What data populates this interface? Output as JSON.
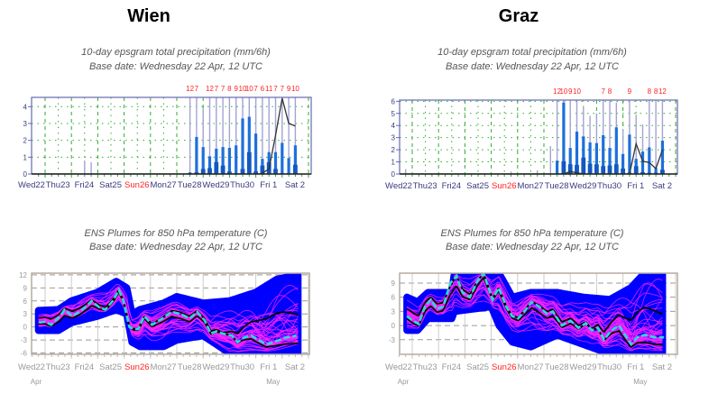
{
  "panels": {
    "wien": {
      "city": "Wien",
      "precip_title": "10-day epsgram total precipitation (mm/6h)",
      "precip_base": "Base date: Wednesday 22 Apr, 12 UTC",
      "temp_title": "ENS Plumes for 850 hPa temperature (C)",
      "temp_base": "Base date: Wednesday 22 Apr, 12 UTC"
    },
    "graz": {
      "city": "Graz",
      "precip_title": "10-day epsgram total precipitation (mm/6h)",
      "precip_base": "Base date: Wednesday 22 Apr, 12 UTC",
      "temp_title": "ENS Plumes for 850 hPa temperature (C)",
      "temp_base": "Base date: Wednesday 22 Apr, 12 UTC"
    }
  },
  "colors": {
    "box": "#1e6fdc",
    "inner": "#1258c0",
    "whisker": "#a3a3d6",
    "frame": "#6868b0",
    "grid": "#33aa33",
    "weekend": "#ff2222",
    "axis_label": "#3a3a80",
    "band": "#0000ff",
    "member": "#ff22ff",
    "mean": "#22dddd",
    "temp_label": "#999999"
  },
  "chart_data": [
    {
      "type": "bar",
      "name": "wien-precip",
      "title": "10-day epsgram total precipitation (mm/6h)",
      "categories": [
        "Wed22",
        "Thu23",
        "Fri24",
        "Sat25",
        "Sun26",
        "Mon27",
        "Tue28",
        "Wed29",
        "Thu30",
        "Fri 1",
        "Sat 2"
      ],
      "weekend": "Sun26",
      "xlabel": "",
      "ylabel": "mm/6h",
      "ylim": [
        0,
        4.55
      ],
      "yticks": [
        0,
        1,
        2,
        3,
        4
      ],
      "grid": true,
      "x_unit": "days since Wed22 00 UTC",
      "bars": [
        {
          "d": 1.5,
          "max": 0.8,
          "box": 0,
          "inner": 0,
          "label": ""
        },
        {
          "d": 1.75,
          "max": 0.7,
          "box": 0,
          "inner": 0,
          "label": ""
        },
        {
          "d": 5.5,
          "max": 12,
          "box": 0.1,
          "inner": 0.05,
          "label": "12"
        },
        {
          "d": 5.75,
          "max": 7,
          "box": 2.2,
          "inner": 0.1,
          "label": "7"
        },
        {
          "d": 6.0,
          "max": 3.9,
          "box": 1.6,
          "inner": 0.3,
          "label": ""
        },
        {
          "d": 6.25,
          "max": 12,
          "box": 1.05,
          "inner": 0.35,
          "label": "12"
        },
        {
          "d": 6.5,
          "max": 7,
          "box": 1.5,
          "inner": 0.7,
          "label": "7"
        },
        {
          "d": 6.75,
          "max": 7,
          "box": 1.6,
          "inner": 0.5,
          "label": "7"
        },
        {
          "d": 7.0,
          "max": 8,
          "box": 1.55,
          "inner": 0.15,
          "label": "8"
        },
        {
          "d": 7.25,
          "max": 9,
          "box": 1.7,
          "inner": 0.05,
          "label": "9"
        },
        {
          "d": 7.5,
          "max": 10,
          "box": 3.3,
          "inner": 0.3,
          "label": "10"
        },
        {
          "d": 7.75,
          "max": 10,
          "box": 3.4,
          "inner": 1.3,
          "label": "10"
        },
        {
          "d": 8.0,
          "max": 7,
          "box": 2.4,
          "inner": 0.15,
          "label": "7"
        },
        {
          "d": 8.25,
          "max": 6,
          "box": 0.9,
          "inner": 0.5,
          "label": "6"
        },
        {
          "d": 8.5,
          "max": 11,
          "box": 1.3,
          "inner": 0.7,
          "label": "11"
        },
        {
          "d": 8.75,
          "max": 7,
          "box": 1.3,
          "inner": 0.3,
          "label": "7"
        },
        {
          "d": 9.0,
          "max": 7,
          "box": 1.85,
          "inner": 0.05,
          "label": "7"
        },
        {
          "d": 9.25,
          "max": 9,
          "box": 0.95,
          "inner": 0.05,
          "label": "9"
        },
        {
          "d": 9.5,
          "max": 10,
          "box": 1.7,
          "inner": 0.55,
          "label": "10"
        }
      ],
      "hres": [
        [
          -0.5,
          0
        ],
        [
          8.2,
          0
        ],
        [
          8.5,
          0.3
        ],
        [
          8.75,
          2.3
        ],
        [
          9.0,
          4.5
        ],
        [
          9.25,
          3.0
        ],
        [
          9.5,
          2.85
        ]
      ]
    },
    {
      "type": "bar",
      "name": "graz-precip",
      "title": "10-day epsgram total precipitation (mm/6h)",
      "categories": [
        "Wed22",
        "Thu23",
        "Fri24",
        "Sat25",
        "Sun26",
        "Mon27",
        "Tue28",
        "Wed29",
        "Thu30",
        "Fri 1",
        "Sat 2"
      ],
      "weekend": "Sun26",
      "xlabel": "",
      "ylabel": "mm/6h",
      "ylim": [
        0,
        6.1
      ],
      "yticks": [
        0,
        1,
        2,
        3,
        4,
        5,
        6
      ],
      "grid": true,
      "x_unit": "days since Wed22 00 UTC",
      "bars": [
        {
          "d": -0.25,
          "max": 0.4,
          "box": 0,
          "inner": 0,
          "label": ""
        },
        {
          "d": 3.75,
          "max": 0.2,
          "box": 0,
          "inner": 0,
          "label": ""
        },
        {
          "d": 4.75,
          "max": 0.3,
          "box": 0,
          "inner": 0,
          "label": ""
        },
        {
          "d": 5.25,
          "max": 2.3,
          "box": 0,
          "inner": 0,
          "label": ""
        },
        {
          "d": 5.5,
          "max": 12,
          "box": 1.1,
          "inner": 0.05,
          "label": "12"
        },
        {
          "d": 5.75,
          "max": 10,
          "box": 5.9,
          "inner": 1.05,
          "label": "10"
        },
        {
          "d": 6.0,
          "max": 9,
          "box": 2.15,
          "inner": 0.8,
          "label": "9"
        },
        {
          "d": 6.25,
          "max": 10,
          "box": 3.5,
          "inner": 0.75,
          "label": "10"
        },
        {
          "d": 6.5,
          "max": 5.5,
          "box": 3.1,
          "inner": 1.35,
          "label": ""
        },
        {
          "d": 6.75,
          "max": 4.8,
          "box": 2.6,
          "inner": 0.85,
          "label": ""
        },
        {
          "d": 7.0,
          "max": 5.0,
          "box": 2.55,
          "inner": 0.8,
          "label": ""
        },
        {
          "d": 7.25,
          "max": 7,
          "box": 3.2,
          "inner": 0.65,
          "label": "7"
        },
        {
          "d": 7.5,
          "max": 8,
          "box": 2.15,
          "inner": 0.7,
          "label": "8"
        },
        {
          "d": 7.75,
          "max": 5.9,
          "box": 3.85,
          "inner": 0.8,
          "label": ""
        },
        {
          "d": 8.0,
          "max": 3.7,
          "box": 1.65,
          "inner": 0.45,
          "label": ""
        },
        {
          "d": 8.25,
          "max": 9,
          "box": 3.25,
          "inner": 0.1,
          "label": "9"
        },
        {
          "d": 8.5,
          "max": 4.9,
          "box": 1.25,
          "inner": 0.65,
          "label": ""
        },
        {
          "d": 8.75,
          "max": 4.1,
          "box": 1.85,
          "inner": 0.15,
          "label": ""
        },
        {
          "d": 9.0,
          "max": 8,
          "box": 2.2,
          "inner": 0.1,
          "label": "8"
        },
        {
          "d": 9.25,
          "max": 8,
          "box": 0.5,
          "inner": 0.1,
          "label": "8"
        },
        {
          "d": 9.5,
          "max": 12,
          "box": 2.75,
          "inner": 0.35,
          "label": "12"
        }
      ],
      "hres": [
        [
          -0.5,
          0
        ],
        [
          5.75,
          0
        ],
        [
          6.0,
          0.2
        ],
        [
          6.25,
          0.1
        ],
        [
          6.5,
          0
        ],
        [
          8.25,
          0
        ],
        [
          8.5,
          2.5
        ],
        [
          8.75,
          1.05
        ],
        [
          9.0,
          0.95
        ],
        [
          9.25,
          0.45
        ],
        [
          9.5,
          2.0
        ]
      ]
    },
    {
      "type": "line",
      "name": "wien-temp",
      "title": "ENS Plumes for 850 hPa temperature (C)",
      "categories": [
        "Wed22",
        "Thu23",
        "Fri24",
        "Sat25",
        "Sun26",
        "Mon27",
        "Tue28",
        "Wed29",
        "Thu30",
        "Fri 1",
        "Sat 2"
      ],
      "weekend": "Sun26",
      "month_labels": [
        {
          "d": 0,
          "text": "Apr"
        },
        {
          "d": 9,
          "text": "May"
        }
      ],
      "xlabel": "",
      "ylabel": "C",
      "ylim": [
        -6.3,
        12.4
      ],
      "yticks": [
        12,
        9,
        6,
        3,
        0,
        -3,
        -6
      ],
      "grid": true,
      "x_unit": "days since Wed22 00 UTC",
      "ensemble_mean": [
        [
          -0.23,
          1
        ],
        [
          0,
          1.2
        ],
        [
          0.23,
          0.5
        ],
        [
          0.57,
          2.5
        ],
        [
          0.74,
          4
        ],
        [
          1.03,
          2.5
        ],
        [
          1.31,
          3.5
        ],
        [
          1.6,
          5
        ],
        [
          1.77,
          6
        ],
        [
          2.06,
          4.5
        ],
        [
          2.29,
          4
        ],
        [
          2.57,
          6
        ],
        [
          2.8,
          8.5
        ],
        [
          2.97,
          6
        ],
        [
          3.2,
          0
        ],
        [
          3.37,
          -0.5
        ],
        [
          3.54,
          -0.5
        ],
        [
          3.77,
          2.5
        ],
        [
          4.06,
          0.5
        ],
        [
          4.46,
          2
        ],
        [
          4.8,
          3.5
        ],
        [
          5.14,
          3
        ],
        [
          5.49,
          2
        ],
        [
          5.77,
          3.5
        ],
        [
          6.06,
          1.5
        ],
        [
          6.29,
          -1.5
        ],
        [
          6.51,
          -1
        ],
        [
          6.74,
          -1.5
        ],
        [
          7.09,
          -2
        ],
        [
          7.31,
          -3.5
        ],
        [
          7.54,
          -2.5
        ],
        [
          7.83,
          -2
        ],
        [
          8.11,
          -3
        ],
        [
          8.4,
          -4
        ],
        [
          8.69,
          -3.5
        ],
        [
          9.09,
          -2.5
        ],
        [
          9.54,
          -2
        ]
      ],
      "envelope": [
        [
          -0.25,
          -0.8,
          3.8
        ],
        [
          0.5,
          -0.8,
          4
        ],
        [
          1.0,
          1,
          6
        ],
        [
          2.0,
          2.5,
          8
        ],
        [
          2.7,
          4,
          10.5
        ],
        [
          3.1,
          3,
          9
        ],
        [
          3.3,
          -3.5,
          3
        ],
        [
          3.6,
          -4.5,
          4
        ],
        [
          4.5,
          -4.5,
          5.5
        ],
        [
          5.0,
          -3,
          7
        ],
        [
          6.0,
          -2,
          5.5
        ],
        [
          7.0,
          -6,
          6
        ],
        [
          8.0,
          -6,
          8
        ],
        [
          8.8,
          -6,
          11
        ],
        [
          9.6,
          -6,
          12
        ]
      ],
      "members": 50
    },
    {
      "type": "line",
      "name": "graz-temp",
      "title": "ENS Plumes for 850 hPa temperature (C)",
      "categories": [
        "Wed22",
        "Thu23",
        "Fri24",
        "Sat25",
        "Sun26",
        "Mon27",
        "Tue28",
        "Wed29",
        "Thu30",
        "Fri 1",
        "Sat 2"
      ],
      "weekend": "Sun26",
      "month_labels": [
        {
          "d": 0,
          "text": "Apr"
        },
        {
          "d": 9,
          "text": "May"
        }
      ],
      "xlabel": "",
      "ylabel": "C",
      "ylim": [
        -6.1,
        11.1
      ],
      "yticks": [
        9,
        6,
        3,
        0,
        -3
      ],
      "grid": true,
      "x_unit": "days since Wed22 00 UTC",
      "ensemble_mean": [
        [
          -0.2,
          2
        ],
        [
          0.02,
          1
        ],
        [
          0.25,
          0.3
        ],
        [
          0.48,
          4
        ],
        [
          0.71,
          5.5
        ],
        [
          0.94,
          3.5
        ],
        [
          1.17,
          4
        ],
        [
          1.45,
          9
        ],
        [
          1.68,
          10.5
        ],
        [
          1.91,
          7
        ],
        [
          2.19,
          6
        ],
        [
          2.48,
          9.5
        ],
        [
          2.71,
          11
        ],
        [
          3.05,
          5.5
        ],
        [
          3.28,
          8
        ],
        [
          3.57,
          4
        ],
        [
          3.79,
          2
        ],
        [
          4.02,
          1.5
        ],
        [
          4.25,
          3
        ],
        [
          4.54,
          5
        ],
        [
          4.82,
          4
        ],
        [
          5.11,
          2.5
        ],
        [
          5.34,
          3
        ],
        [
          5.68,
          0
        ],
        [
          6.02,
          1
        ],
        [
          6.31,
          -0.5
        ],
        [
          6.59,
          0.5
        ],
        [
          6.82,
          -1
        ],
        [
          7.05,
          -0.5
        ],
        [
          7.28,
          -3
        ],
        [
          7.57,
          -1
        ],
        [
          7.85,
          0
        ],
        [
          8.08,
          -2
        ],
        [
          8.31,
          -4
        ],
        [
          8.54,
          -2.5
        ],
        [
          8.82,
          -2
        ],
        [
          9.22,
          -2.5
        ],
        [
          9.56,
          -2.5
        ]
      ],
      "envelope": [
        [
          -0.2,
          -1,
          6
        ],
        [
          0.2,
          -1,
          5
        ],
        [
          0.6,
          1.5,
          7
        ],
        [
          1.5,
          1.5,
          7
        ],
        [
          1.6,
          3,
          11
        ],
        [
          3.0,
          4,
          11
        ],
        [
          3.3,
          0,
          11
        ],
        [
          3.8,
          -3.5,
          6
        ],
        [
          4.5,
          -4.5,
          7
        ],
        [
          5.5,
          -2,
          7
        ],
        [
          6.5,
          -4,
          6
        ],
        [
          7.5,
          -6,
          5.5
        ],
        [
          8.3,
          -6,
          8
        ],
        [
          8.8,
          -6,
          11
        ],
        [
          9.5,
          -6,
          11
        ]
      ],
      "members": 50
    }
  ]
}
